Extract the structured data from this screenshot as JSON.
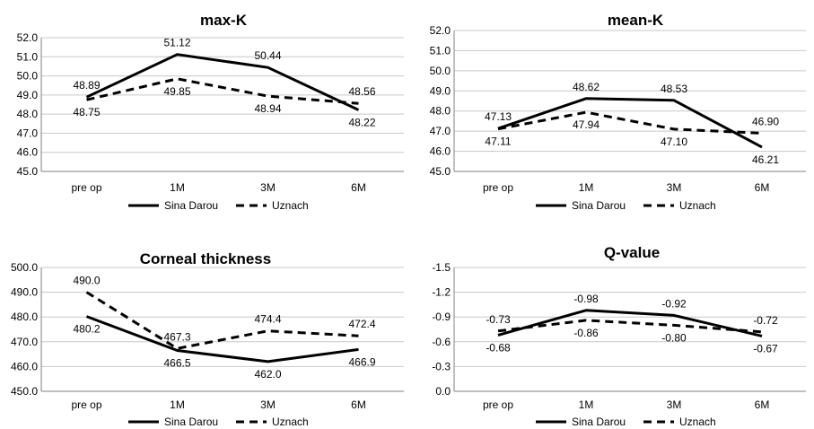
{
  "chart_data": [
    {
      "type": "line",
      "title": "max-K",
      "categories": [
        "pre op",
        "1M",
        "3M",
        "6M"
      ],
      "ylim": [
        45.0,
        52.0
      ],
      "ytick_step": 1.0,
      "ytick_decimals": 1,
      "label_decimals": 2,
      "grid": true,
      "legend_position": "bottom",
      "series": [
        {
          "name": "Sina Darou",
          "style": "solid",
          "values": [
            48.89,
            51.12,
            50.44,
            48.22
          ],
          "labels": [
            "48.89",
            "51.12",
            "50.44",
            "48.22"
          ],
          "label_pos": [
            "above",
            "above",
            "above",
            "below"
          ]
        },
        {
          "name": "Uznach",
          "style": "dashed",
          "values": [
            48.75,
            49.85,
            48.94,
            48.56
          ],
          "labels": [
            "48.75",
            "49.85",
            "48.94",
            "48.56"
          ],
          "label_pos": [
            "below",
            "below",
            "below",
            "above"
          ]
        }
      ]
    },
    {
      "type": "line",
      "title": "mean-K",
      "categories": [
        "pre op",
        "1M",
        "3M",
        "6M"
      ],
      "ylim": [
        45.0,
        52.0
      ],
      "ytick_step": 1.0,
      "ytick_decimals": 1,
      "label_decimals": 2,
      "grid": true,
      "legend_position": "bottom",
      "series": [
        {
          "name": "Sina Darou",
          "style": "solid",
          "values": [
            47.13,
            48.62,
            48.53,
            46.21
          ],
          "labels": [
            "47.13",
            "48.62",
            "48.53",
            "46.21"
          ],
          "label_pos": [
            "above",
            "above",
            "above",
            "below"
          ]
        },
        {
          "name": "Uznach",
          "style": "dashed",
          "values": [
            47.11,
            47.94,
            47.1,
            46.9
          ],
          "labels": [
            "47.11",
            "47.94",
            "47.10",
            "46.90"
          ],
          "label_pos": [
            "below",
            "below",
            "below",
            "above"
          ]
        }
      ]
    },
    {
      "type": "line",
      "title": "Corneal thickness",
      "categories": [
        "pre op",
        "1M",
        "3M",
        "6M"
      ],
      "ylim": [
        450.0,
        500.0
      ],
      "ytick_step": 10.0,
      "ytick_decimals": 1,
      "label_decimals": 1,
      "grid": true,
      "legend_position": "bottom",
      "series": [
        {
          "name": "Sina Darou",
          "style": "solid",
          "values": [
            480.2,
            466.5,
            462.0,
            466.9
          ],
          "labels": [
            "480.2",
            "466.5",
            "462.0",
            "466.9"
          ],
          "label_pos": [
            "below",
            "below",
            "below",
            "below"
          ]
        },
        {
          "name": "Uznach",
          "style": "dashed",
          "values": [
            490.0,
            467.3,
            474.4,
            472.4
          ],
          "labels": [
            "490.0",
            "467.3",
            "474.4",
            "472.4"
          ],
          "label_pos": [
            "above",
            "above",
            "above",
            "above"
          ]
        }
      ]
    },
    {
      "type": "line",
      "title": "Q-value",
      "categories": [
        "pre op",
        "1M",
        "3M",
        "6M"
      ],
      "ylim": [
        -1.5,
        0.0
      ],
      "y_reversed": true,
      "ytick_step": 0.3,
      "ytick_decimals": 1,
      "label_decimals": 2,
      "grid": true,
      "legend_position": "bottom",
      "series": [
        {
          "name": "Sina Darou",
          "style": "solid",
          "values": [
            -0.68,
            -0.98,
            -0.92,
            -0.67
          ],
          "labels": [
            "-0.68",
            "-0.98",
            "-0.92",
            "-0.67"
          ],
          "label_pos": [
            "below",
            "above",
            "above",
            "below"
          ]
        },
        {
          "name": "Uznach",
          "style": "dashed",
          "values": [
            -0.73,
            -0.86,
            -0.8,
            -0.72
          ],
          "labels": [
            "-0.73",
            "-0.86",
            "-0.80",
            "-0.72"
          ],
          "label_pos": [
            "above",
            "below",
            "below",
            "above"
          ]
        }
      ]
    }
  ]
}
